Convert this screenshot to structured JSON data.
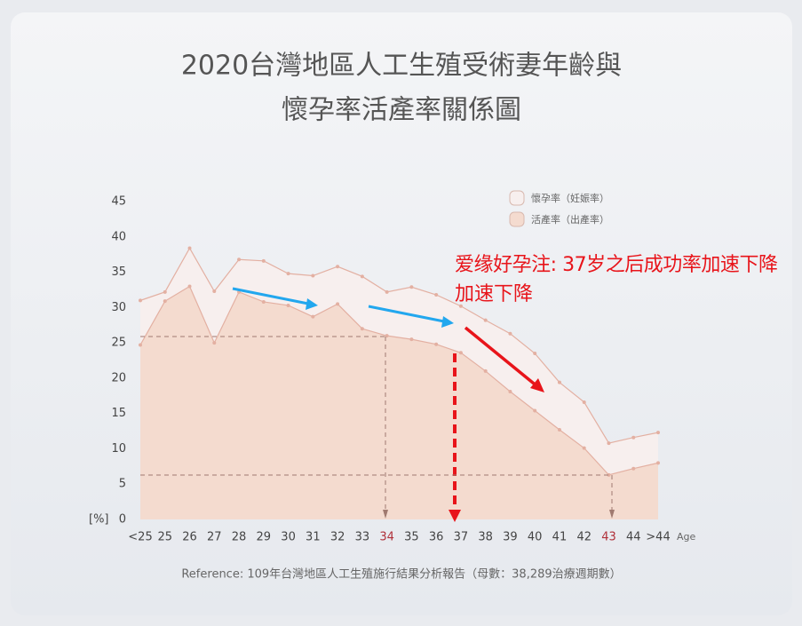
{
  "chart_data": {
    "type": "area",
    "title": [
      "2020台灣地區人工生殖受術妻年齡與",
      "懷孕率活產率關係圖"
    ],
    "y_unit": "[%]",
    "x_label": "Age",
    "categories": [
      "<25",
      "25",
      "26",
      "27",
      "28",
      "29",
      "30",
      "31",
      "32",
      "33",
      "34",
      "35",
      "36",
      "37",
      "38",
      "39",
      "40",
      "41",
      "42",
      "43",
      "44",
      ">44"
    ],
    "series": [
      {
        "name": "懷孕率（妊娠率）",
        "color": "#f7efee",
        "line_color": "#e3b0a2",
        "values": [
          31.0,
          32.2,
          38.4,
          32.3,
          36.8,
          36.6,
          34.8,
          34.5,
          35.8,
          34.4,
          32.2,
          32.9,
          31.8,
          30.2,
          28.2,
          26.3,
          23.5,
          19.4,
          16.6,
          10.8,
          11.6,
          12.3
        ]
      },
      {
        "name": "活產率（出產率）",
        "color": "#f4dbcf",
        "line_color": "#e3b0a2",
        "values": [
          24.7,
          30.9,
          33.0,
          25.0,
          32.2,
          30.8,
          30.3,
          28.7,
          30.5,
          27.0,
          26.0,
          25.5,
          24.8,
          23.6,
          21.0,
          18.1,
          15.4,
          12.7,
          10.1,
          6.3,
          7.2,
          8.0
        ]
      }
    ],
    "ylim": [
      0,
      45
    ],
    "yticks": [
      0,
      5,
      10,
      15,
      20,
      25,
      30,
      35,
      40,
      45
    ],
    "annotation": [
      "爱缘好孕注: 37岁之后成功率加速下降",
      "加速下降"
    ],
    "reference": "Reference: 109年台灣地區人工生殖施行結果分析報告（母數：38,289治療週期數）"
  }
}
